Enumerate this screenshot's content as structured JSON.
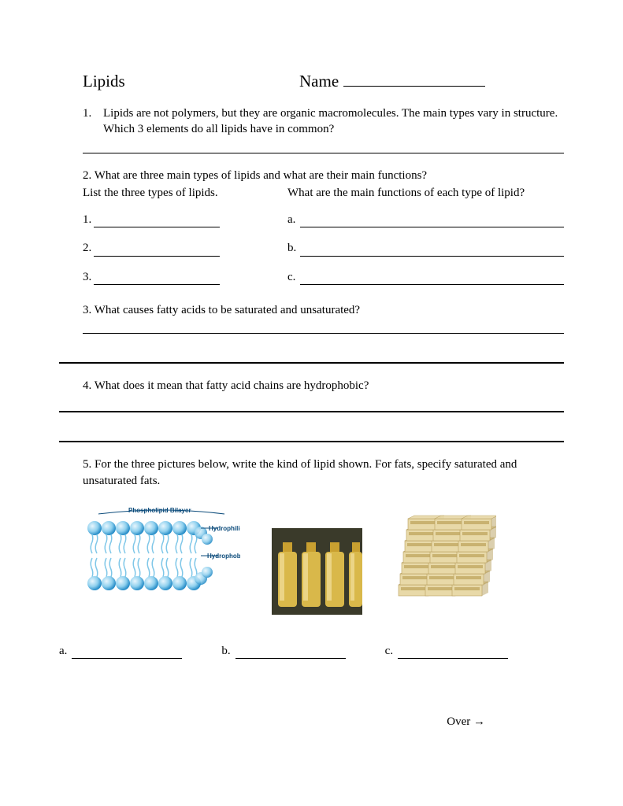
{
  "header": {
    "title": "Lipids",
    "name_label": "Name"
  },
  "q1": {
    "num": "1.",
    "text": "Lipids are not polymers, but they are organic macromolecules.  The main types vary in structure. Which 3 elements do all lipids have in common?"
  },
  "q2": {
    "intro": "2. What are three main types of lipids and what are their main functions?",
    "left_label": "List the three types of lipids.",
    "right_label": "What are the main functions of each type of lipid?",
    "rows": [
      {
        "n": "1.",
        "l": "a."
      },
      {
        "n": "2.",
        "l": "b."
      },
      {
        "n": "3.",
        "l": "c."
      }
    ]
  },
  "q3": "3. What causes fatty acids to be saturated and unsaturated?",
  "q4": "4. What does it mean that fatty acid chains are hydrophobic?",
  "q5": "5. For the three pictures below, write the kind of lipid shown.  For fats, specify saturated and unsaturated fats.",
  "bilayer": {
    "title": "Phospholipid Bilayer",
    "label_top": "Hydrophilic",
    "label_mid": "Hydrophobic",
    "sphere_color_light": "#bde4f7",
    "sphere_color_dark": "#2a8fc9",
    "tail_color": "#7fc7e8"
  },
  "oil": {
    "liquid_color": "#d9b84a",
    "cap_color": "#c9a030",
    "highlight": "#f2e0a0",
    "bg": "#3a3a2a"
  },
  "butter": {
    "box_fill": "#e8d9a8",
    "box_stroke": "#b89f5e",
    "label_fill": "#c9b270"
  },
  "answers": {
    "a": "a.",
    "b": "b.",
    "c": "c."
  },
  "over": "Over →"
}
